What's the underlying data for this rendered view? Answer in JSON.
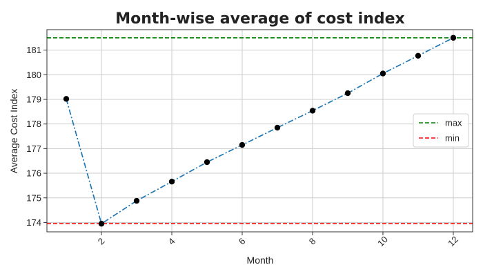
{
  "chart_data": {
    "type": "line",
    "title": "Month-wise average of cost index",
    "xlabel": "Month",
    "ylabel": "Average Cost Index",
    "xlim": [
      0.45,
      12.55
    ],
    "ylim": [
      173.62,
      181.83
    ],
    "grid": true,
    "legend_position": "center-right",
    "x_ticks": [
      2,
      4,
      6,
      8,
      10,
      12
    ],
    "y_ticks": [
      174,
      175,
      176,
      177,
      178,
      179,
      180,
      181
    ],
    "x": [
      1,
      2,
      3,
      4,
      5,
      6,
      7,
      8,
      9,
      10,
      11,
      12
    ],
    "series": [
      {
        "values": [
          179.02,
          173.95,
          174.88,
          175.66,
          176.45,
          177.15,
          177.85,
          178.54,
          179.25,
          180.05,
          180.77,
          181.5
        ],
        "color": "#1f77b4",
        "line_style": "dash-dot",
        "marker_color": "#000000"
      }
    ],
    "reference_lines": [
      {
        "name": "max",
        "value": 181.5,
        "color": "#008000",
        "line_style": "dashed"
      },
      {
        "name": "min",
        "value": 173.95,
        "color": "#ff0000",
        "line_style": "dashed"
      }
    ]
  }
}
